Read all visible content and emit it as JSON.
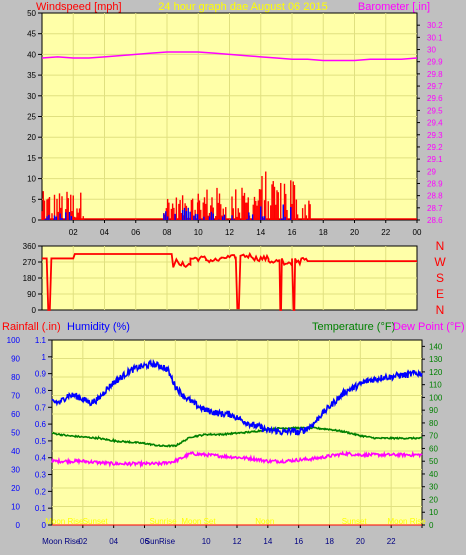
{
  "colors": {
    "background": "#c0c0c0",
    "plot_bg": "#ffffa8",
    "grid": "#e0e080",
    "frame": "#000000",
    "wind_gust": "#ff0000",
    "wind_avg": "#0000ff",
    "barometer": "#ff00ff",
    "direction": "#ff0000",
    "humidity": "#0000ff",
    "temperature": "#008000",
    "dew_point": "#ff00ff",
    "rainfall": "#ff0000",
    "header_text": "#ffff00",
    "label_red": "#ff0000",
    "label_blue": "#0000ff",
    "label_green": "#008000",
    "label_magenta": "#ff00ff",
    "astro_text": "#ffff00",
    "bottom_text": "#000080"
  },
  "header": {
    "left": "Windspeed [mph]",
    "center": "24 hour graph dae   August 06 2015",
    "right": "Barometer [.in]"
  },
  "compass": [
    "N",
    "W",
    "S",
    "E",
    "N"
  ],
  "bottom_header": {
    "rainfall": "Rainfall (.in)",
    "humidity": "Humidity (%)",
    "temperature": "Temperature (°F)",
    "dew_point": "Dew Point (°F)"
  },
  "astro_labels": [
    {
      "text": "Moon Rise",
      "hour": 0.8
    },
    {
      "text": "Sunset",
      "hour": 2.8
    },
    {
      "text": "Sunrise",
      "hour": 7.2
    },
    {
      "text": "Moon Set",
      "hour": 9.5
    },
    {
      "text": "Noon",
      "hour": 13.8
    },
    {
      "text": "Sunset",
      "hour": 19.6
    },
    {
      "text": "Moon Rise",
      "hour": 23.0
    }
  ],
  "bottom_axis_labels": [
    {
      "text": "Moon Rise",
      "hour": 0.6
    },
    {
      "text": "SunRise",
      "hour": 7.0
    }
  ],
  "chart_data": [
    {
      "type": "bar",
      "name": "windspeed",
      "xlim": [
        0,
        24
      ],
      "xticks": [
        "02",
        "04",
        "06",
        "08",
        "10",
        "12",
        "14",
        "16",
        "18",
        "20",
        "22",
        "00"
      ],
      "ylim_left": [
        0,
        50
      ],
      "yticks_left": [
        "0",
        "5",
        "10",
        "15",
        "20",
        "25",
        "30",
        "35",
        "40",
        "45",
        "50"
      ],
      "ylim_right": [
        28.6,
        30.3
      ],
      "yticks_right": [
        "28.6",
        "28.7",
        "28.8",
        "28.9",
        "29",
        "29.1",
        "29.2",
        "29.3",
        "29.4",
        "29.5",
        "29.6",
        "29.7",
        "29.8",
        "29.9",
        "30",
        "30.1",
        "30.2"
      ],
      "gust_clusters": [
        {
          "start": 0.0,
          "end": 2.8,
          "max": 7
        },
        {
          "start": 7.8,
          "end": 10.0,
          "max": 6
        },
        {
          "start": 10.0,
          "end": 14.0,
          "max": 8
        },
        {
          "start": 14.0,
          "end": 16.2,
          "max": 12
        },
        {
          "start": 16.2,
          "end": 17.2,
          "max": 6
        }
      ],
      "average_clusters": [
        {
          "start": 0.2,
          "end": 2.0,
          "max": 2
        },
        {
          "start": 7.8,
          "end": 10.0,
          "max": 3
        },
        {
          "start": 10.0,
          "end": 14.0,
          "max": 2
        },
        {
          "start": 14.0,
          "end": 16.0,
          "max": 4
        }
      ],
      "barometer": {
        "x": [
          0,
          1,
          2,
          3,
          4,
          5,
          6,
          7,
          8,
          9,
          10,
          11,
          12,
          13,
          14,
          15,
          16,
          17,
          18,
          19,
          20,
          21,
          22,
          23,
          24
        ],
        "y": [
          29.93,
          29.94,
          29.93,
          29.93,
          29.94,
          29.95,
          29.96,
          29.97,
          29.98,
          29.98,
          29.98,
          29.97,
          29.96,
          29.95,
          29.94,
          29.93,
          29.92,
          29.92,
          29.91,
          29.91,
          29.91,
          29.92,
          29.92,
          29.92,
          29.93
        ]
      }
    },
    {
      "type": "line",
      "name": "wind_direction",
      "xlim": [
        0,
        24
      ],
      "ylim": [
        0,
        360
      ],
      "yticks": [
        "0",
        "90",
        "180",
        "270",
        "360"
      ],
      "x": [
        0.0,
        0.3,
        0.4,
        0.5,
        0.6,
        2.0,
        2.1,
        8.3,
        8.4,
        8.6,
        8.8,
        9.5,
        10.5,
        11.5,
        12.4,
        12.5,
        12.6,
        12.7,
        13.5,
        14.5,
        15.2,
        15.25,
        15.3,
        15.35,
        15.5,
        16.0,
        16.1,
        16.15,
        16.2,
        16.3,
        16.6,
        17.0,
        24.0
      ],
      "y": [
        290,
        290,
        0,
        0,
        290,
        290,
        315,
        315,
        240,
        285,
        255,
        290,
        280,
        295,
        300,
        10,
        10,
        305,
        290,
        275,
        285,
        0,
        0,
        290,
        255,
        290,
        0,
        0,
        290,
        270,
        290,
        275,
        275
      ]
    },
    {
      "type": "line",
      "name": "climate",
      "xlim": [
        0,
        24
      ],
      "ylim_left": [
        0,
        100
      ],
      "yticks_left": [
        "0",
        "10",
        "20",
        "30",
        "40",
        "50",
        "60",
        "70",
        "80",
        "90",
        "100"
      ],
      "ylim_rain": [
        0,
        1.1
      ],
      "yticks_rain": [
        "0",
        "0.1",
        "0.2",
        "0.3",
        "0.4",
        "0.5",
        "0.6",
        "0.7",
        "0.8",
        "0.9",
        "1",
        "1.1"
      ],
      "ylim_right": [
        0,
        145
      ],
      "yticks_right": [
        "0",
        "10",
        "20",
        "30",
        "40",
        "50",
        "60",
        "70",
        "80",
        "90",
        "100",
        "110",
        "120",
        "130",
        "140"
      ],
      "humidity": {
        "x": [
          0,
          0.5,
          1,
          1.5,
          2,
          2.5,
          3,
          3.5,
          4,
          4.5,
          5,
          5.5,
          6,
          6.5,
          7,
          7.5,
          8,
          8.5,
          9,
          9.5,
          10,
          10.5,
          11,
          11.5,
          12,
          12.5,
          13,
          13.5,
          14,
          14.5,
          15,
          15.5,
          16,
          16.5,
          17,
          17.5,
          18,
          18.5,
          19,
          19.5,
          20,
          20.5,
          21,
          21.5,
          22,
          22.5,
          23,
          23.5,
          24
        ],
        "y": [
          67,
          66,
          70,
          70,
          68,
          66,
          68,
          73,
          77,
          80,
          83,
          85,
          86,
          87,
          86,
          84,
          75,
          70,
          67,
          64,
          62,
          61,
          60,
          60,
          58,
          56,
          54,
          53,
          51,
          51,
          50,
          51,
          50,
          52,
          55,
          60,
          64,
          68,
          72,
          74,
          76,
          78,
          79,
          80,
          80,
          81,
          81,
          82,
          82
        ]
      },
      "temperature": {
        "x": [
          0,
          1,
          2,
          3,
          4,
          5,
          6,
          7,
          8,
          9,
          10,
          11,
          12,
          13,
          14,
          15,
          16,
          17,
          18,
          19,
          20,
          21,
          22,
          23,
          24
        ],
        "y": [
          72,
          70,
          69,
          68,
          66,
          65,
          64,
          62,
          62,
          69,
          71,
          71,
          72,
          73,
          75,
          76,
          76,
          76,
          75,
          73,
          70,
          68,
          68,
          68,
          68
        ]
      },
      "dew_point": {
        "x": [
          0,
          1,
          2,
          3,
          4,
          5,
          6,
          7,
          8,
          9,
          10,
          11,
          12,
          13,
          14,
          15,
          16,
          17,
          18,
          19,
          20,
          21,
          22,
          23,
          24
        ],
        "y": [
          50,
          50,
          50,
          49,
          48,
          48,
          48,
          48,
          50,
          56,
          55,
          54,
          53,
          52,
          50,
          50,
          51,
          52,
          54,
          56,
          55,
          55,
          55,
          55,
          55
        ]
      },
      "rainfall": {
        "x": [
          0,
          24
        ],
        "y": [
          0,
          0
        ]
      }
    }
  ]
}
